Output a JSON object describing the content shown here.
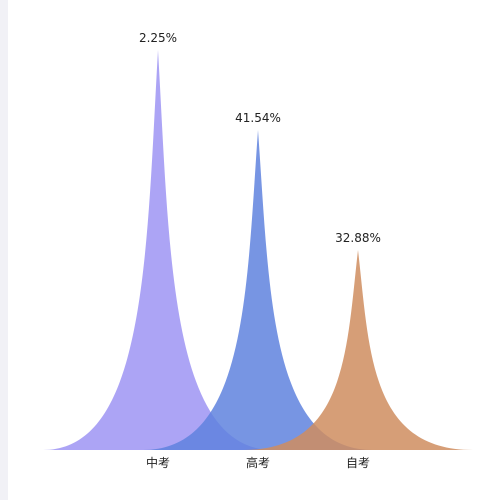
{
  "chart_data": {
    "type": "pictorial-spike",
    "categories": [
      "中考",
      "高考",
      "自考"
    ],
    "values": [
      100,
      80,
      50
    ],
    "labels": [
      "2.25%",
      "41.54%",
      "32.88%"
    ],
    "colors": [
      "#9d94f3",
      "#5f82de",
      "#cf8d5f"
    ],
    "ylim": [
      0,
      100
    ]
  }
}
